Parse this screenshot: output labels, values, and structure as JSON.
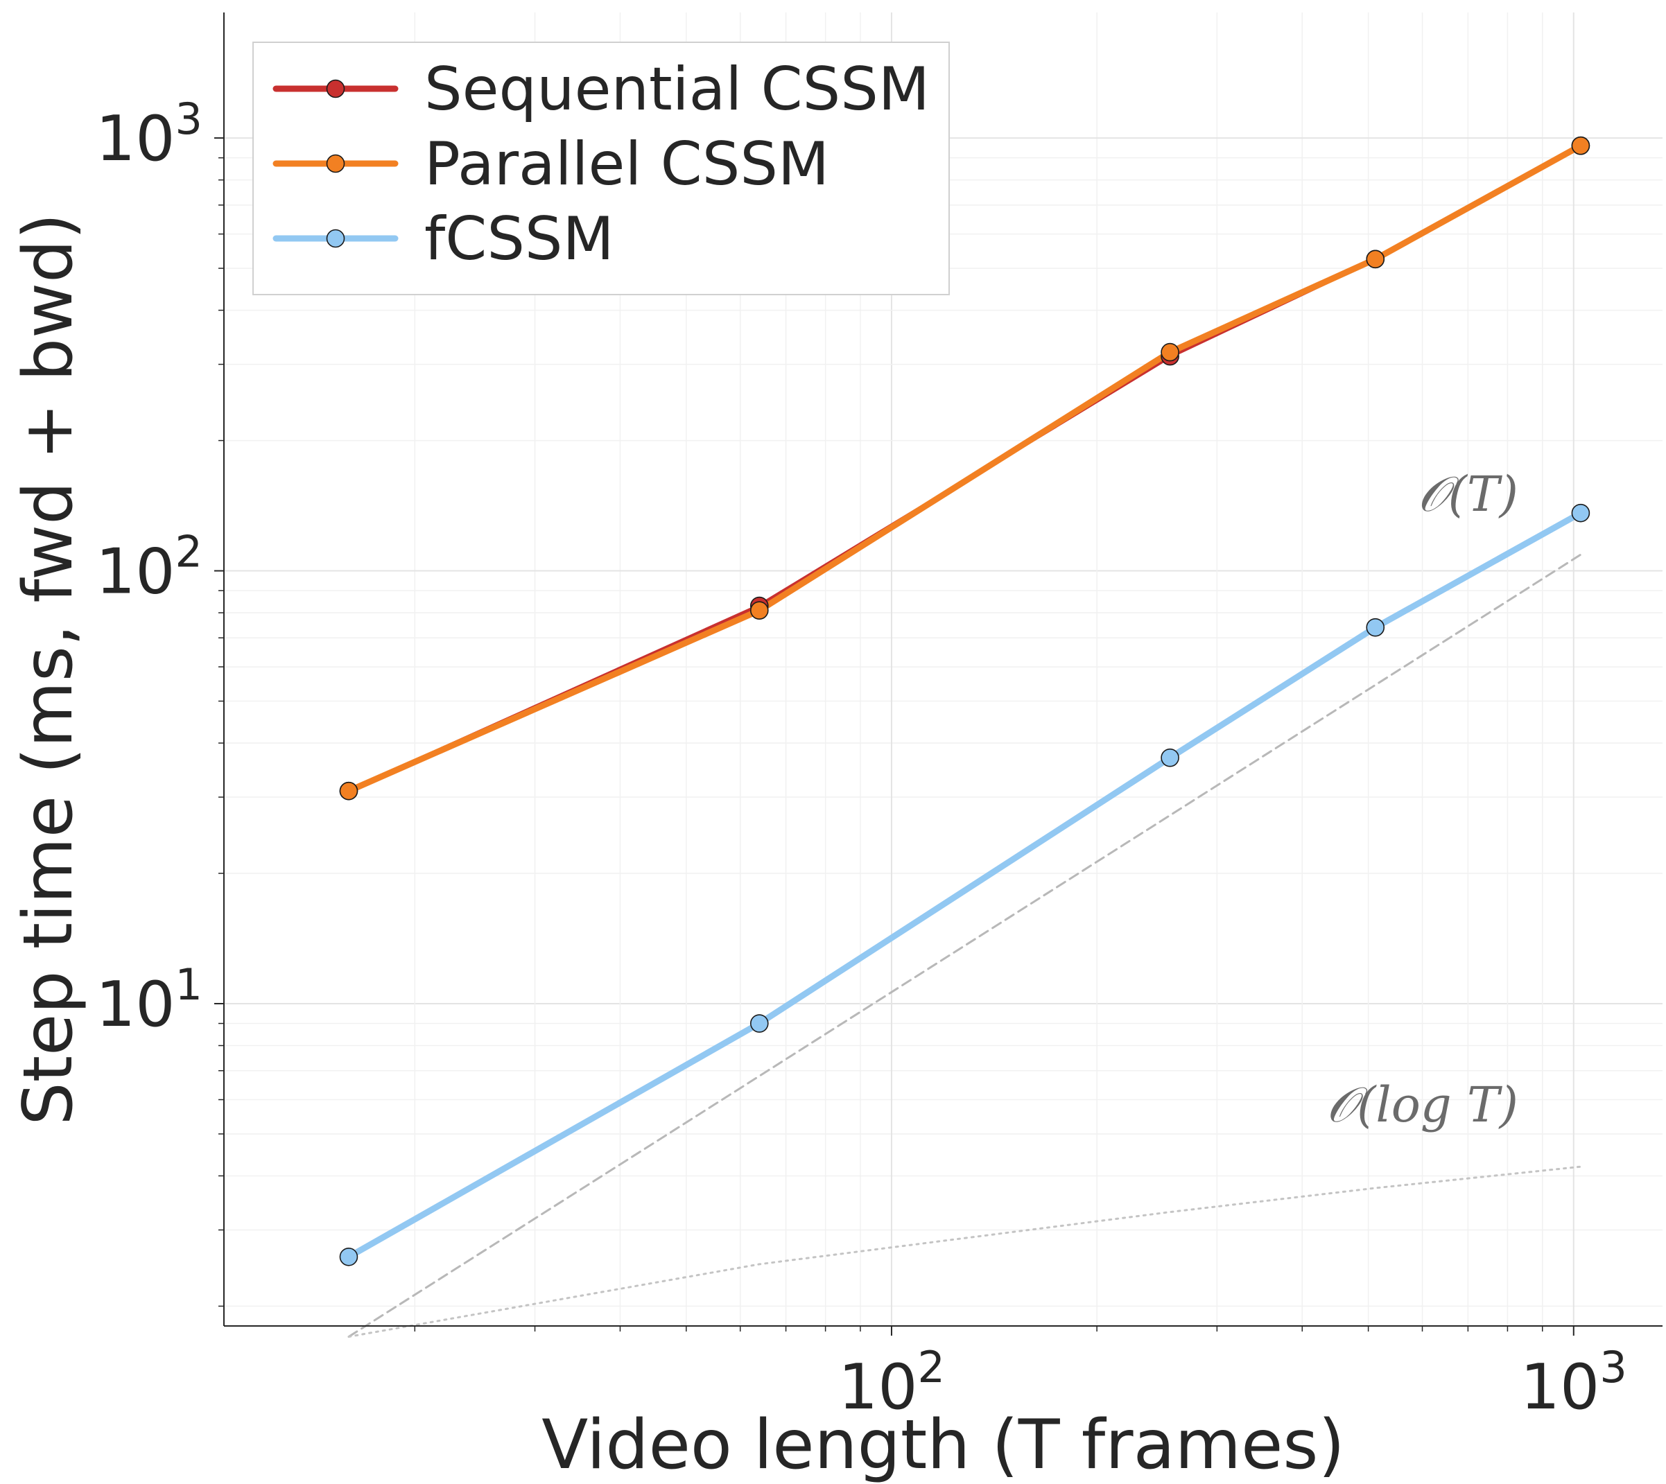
{
  "chart_data": {
    "type": "line",
    "xscale": "log",
    "yscale": "log",
    "xlim": [
      10.5,
      1350
    ],
    "ylim": [
      1.8,
      1950
    ],
    "xlabel": "Video length (T frames)",
    "ylabel": "Step time (ms, fwd + bwd)",
    "x_ticks": [
      {
        "base": "10",
        "exp": "2",
        "value": 100
      },
      {
        "base": "10",
        "exp": "3",
        "value": 1000
      }
    ],
    "y_ticks": [
      {
        "base": "10",
        "exp": "1",
        "value": 10
      },
      {
        "base": "10",
        "exp": "2",
        "value": 100
      },
      {
        "base": "10",
        "exp": "3",
        "value": 1000
      }
    ],
    "grid": true,
    "legend_position": "top-left",
    "series": [
      {
        "name": "Sequential CSSM",
        "color": "#c8302f",
        "x": [
          16,
          64,
          256,
          512,
          1024
        ],
        "y": [
          31,
          83,
          313,
          525,
          960
        ]
      },
      {
        "name": "Parallel CSSM",
        "color": "#f28022",
        "x": [
          16,
          64,
          256,
          512,
          1024
        ],
        "y": [
          31,
          81,
          320,
          525,
          960
        ]
      },
      {
        "name": "fCSSM",
        "color": "#92c8f2",
        "x": [
          16,
          64,
          256,
          512,
          1024
        ],
        "y": [
          2.6,
          9.0,
          37,
          74,
          136
        ]
      }
    ],
    "reference_lines": [
      {
        "label": "𝒪(T)",
        "style": "dashed",
        "color": "#b8b8b8",
        "x": [
          16,
          1024
        ],
        "y": [
          1.7,
          109
        ]
      },
      {
        "label": "𝒪(log T)",
        "style": "dotted",
        "color": "#c4c4c4",
        "x": [
          16,
          64,
          256,
          512,
          1024
        ],
        "y": [
          1.7,
          2.5,
          3.3,
          3.75,
          4.2
        ]
      }
    ]
  }
}
